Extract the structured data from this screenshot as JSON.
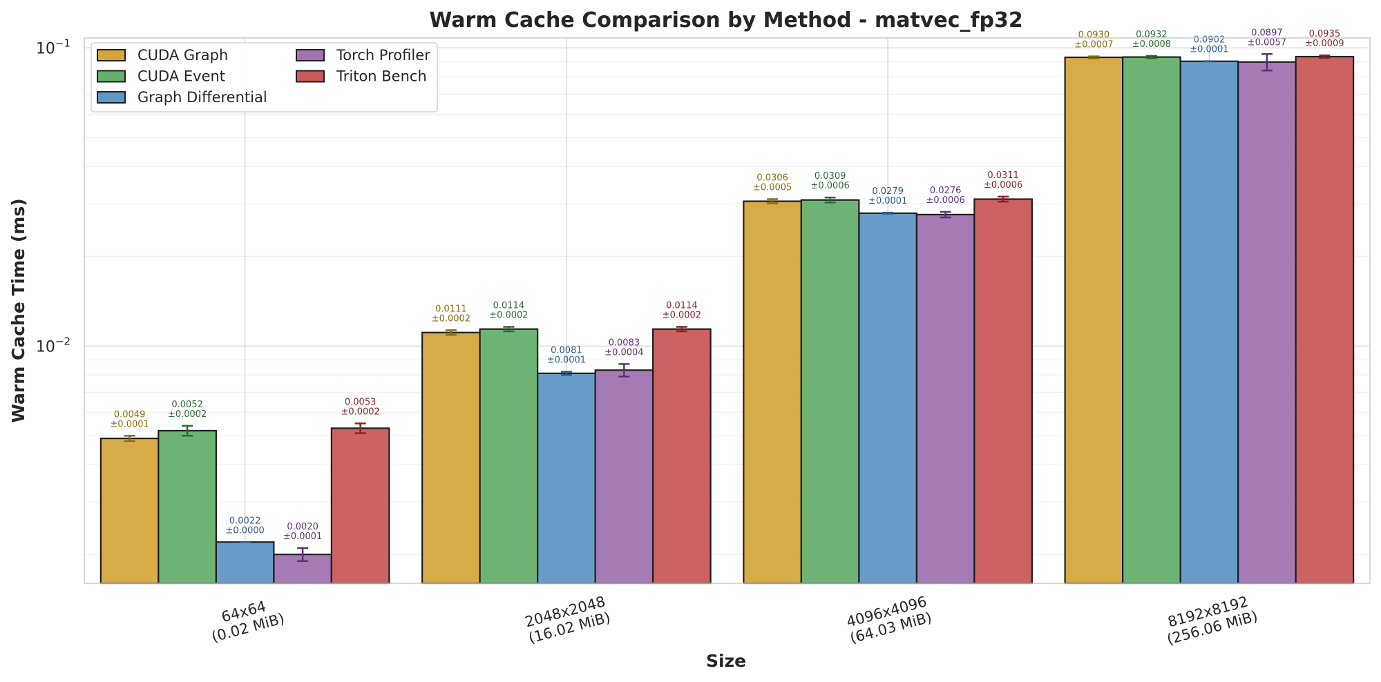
{
  "chart_data": {
    "type": "bar",
    "title": "Warm Cache Comparison by Method - matvec_fp32",
    "xlabel": "Size",
    "ylabel": "Warm Cache Time (ms)",
    "yscale": "log",
    "ylim": [
      0.0016,
      0.108
    ],
    "grid": true,
    "legend_position": "top-left",
    "y_ticks": [
      {
        "value": 0.01,
        "base": "10",
        "exp": "−2"
      },
      {
        "value": 0.1,
        "base": "10",
        "exp": "−1"
      }
    ],
    "categories": [
      {
        "line1": "64x64",
        "line2": "(0.02 MiB)"
      },
      {
        "line1": "2048x2048",
        "line2": "(16.02 MiB)"
      },
      {
        "line1": "4096x4096",
        "line2": "(64.03 MiB)"
      },
      {
        "line1": "8192x8192",
        "line2": "(256.06 MiB)"
      }
    ],
    "series": [
      {
        "name": "CUDA Graph",
        "color": "#d4a63e",
        "label_color": "#8a6d10",
        "values": [
          0.0049,
          0.0111,
          0.0306,
          0.093
        ],
        "errors": [
          0.0001,
          0.0002,
          0.0005,
          0.0007
        ],
        "labels": [
          "0.0049",
          "0.0111",
          "0.0306",
          "0.0930"
        ],
        "error_labels": [
          "±0.0001",
          "±0.0002",
          "±0.0005",
          "±0.0007"
        ]
      },
      {
        "name": "CUDA Event",
        "color": "#65b06d",
        "label_color": "#2e6a34",
        "values": [
          0.0052,
          0.0114,
          0.0309,
          0.0932
        ],
        "errors": [
          0.0002,
          0.0002,
          0.0006,
          0.0008
        ],
        "labels": [
          "0.0052",
          "0.0114",
          "0.0309",
          "0.0932"
        ],
        "error_labels": [
          "±0.0002",
          "±0.0002",
          "±0.0006",
          "±0.0008"
        ]
      },
      {
        "name": "Graph Differential",
        "color": "#6097c6",
        "label_color": "#2c5c8a",
        "values": [
          0.0022,
          0.0081,
          0.0279,
          0.0902
        ],
        "errors": [
          0.0,
          0.0001,
          0.0001,
          0.0001
        ],
        "labels": [
          "0.0022",
          "0.0081",
          "0.0279",
          "0.0902"
        ],
        "error_labels": [
          "±0.0000",
          "±0.0001",
          "±0.0001",
          "±0.0001"
        ]
      },
      {
        "name": "Torch Profiler",
        "color": "#a073b1",
        "label_color": "#5e2f78",
        "values": [
          0.002,
          0.0083,
          0.0276,
          0.0897
        ],
        "errors": [
          0.0001,
          0.0004,
          0.0006,
          0.0057
        ],
        "labels": [
          "0.0020",
          "0.0083",
          "0.0276",
          "0.0897"
        ],
        "error_labels": [
          "±0.0001",
          "±0.0004",
          "±0.0006",
          "±0.0057"
        ]
      },
      {
        "name": "Triton Bench",
        "color": "#c95a5a",
        "label_color": "#8a2323",
        "values": [
          0.0053,
          0.0114,
          0.0311,
          0.0935
        ],
        "errors": [
          0.0002,
          0.0002,
          0.0006,
          0.0009
        ],
        "labels": [
          "0.0053",
          "0.0114",
          "0.0311",
          "0.0935"
        ],
        "error_labels": [
          "±0.0002",
          "±0.0002",
          "±0.0006",
          "±0.0009"
        ]
      }
    ]
  }
}
